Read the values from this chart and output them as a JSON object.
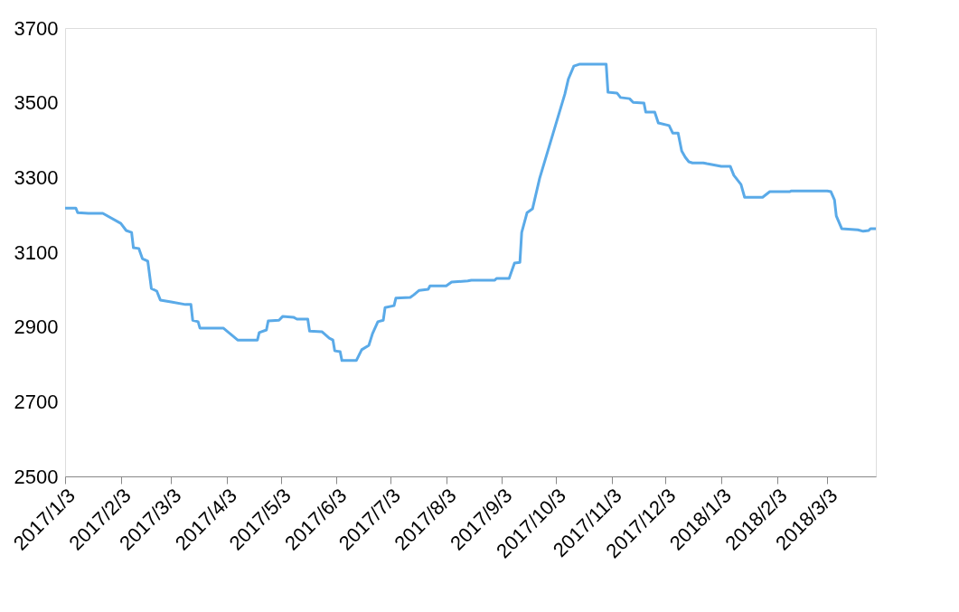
{
  "chart_data": {
    "type": "line",
    "grid": false,
    "marker": "none",
    "line_style": "solid",
    "ylim": [
      2500,
      3700
    ],
    "yticks": [
      2500,
      2700,
      2900,
      3100,
      3300,
      3500,
      3700
    ],
    "xlim": [
      "2017-01-03",
      "2018-03-30"
    ],
    "xticks": [
      {
        "value": "2017-01-03",
        "label": "2017/1/3"
      },
      {
        "value": "2017-02-03",
        "label": "2017/2/3"
      },
      {
        "value": "2017-03-03",
        "label": "2017/3/3"
      },
      {
        "value": "2017-04-03",
        "label": "2017/4/3"
      },
      {
        "value": "2017-05-03",
        "label": "2017/5/3"
      },
      {
        "value": "2017-06-03",
        "label": "2017/6/3"
      },
      {
        "value": "2017-07-03",
        "label": "2017/7/3"
      },
      {
        "value": "2017-08-03",
        "label": "2017/8/3"
      },
      {
        "value": "2017-09-03",
        "label": "2017/9/3"
      },
      {
        "value": "2017-10-03",
        "label": "2017/10/3"
      },
      {
        "value": "2017-11-03",
        "label": "2017/11/3"
      },
      {
        "value": "2017-12-03",
        "label": "2017/12/3"
      },
      {
        "value": "2018-01-03",
        "label": "2018/1/3"
      },
      {
        "value": "2018-02-03",
        "label": "2018/2/3"
      },
      {
        "value": "2018-03-03",
        "label": "2018/3/3"
      }
    ],
    "x": [
      "2017-01-03",
      "2017-01-09",
      "2017-01-10",
      "2017-01-16",
      "2017-01-24",
      "2017-02-03",
      "2017-02-06",
      "2017-02-09",
      "2017-02-10",
      "2017-02-13",
      "2017-02-15",
      "2017-02-18",
      "2017-02-20",
      "2017-02-23",
      "2017-02-25",
      "2017-03-03",
      "2017-03-11",
      "2017-03-14",
      "2017-03-15",
      "2017-03-18",
      "2017-03-19",
      "2017-04-01",
      "2017-04-06",
      "2017-04-09",
      "2017-04-20",
      "2017-04-21",
      "2017-04-25",
      "2017-04-26",
      "2017-05-02",
      "2017-05-04",
      "2017-05-10",
      "2017-05-12",
      "2017-05-18",
      "2017-05-19",
      "2017-05-26",
      "2017-05-30",
      "2017-06-01",
      "2017-06-02",
      "2017-06-05",
      "2017-06-06",
      "2017-06-14",
      "2017-06-17",
      "2017-06-21",
      "2017-06-23",
      "2017-06-26",
      "2017-06-29",
      "2017-06-30",
      "2017-07-05",
      "2017-07-06",
      "2017-07-14",
      "2017-07-16",
      "2017-07-19",
      "2017-07-24",
      "2017-07-25",
      "2017-08-03",
      "2017-08-06",
      "2017-08-15",
      "2017-08-17",
      "2017-08-30",
      "2017-08-31",
      "2017-09-07",
      "2017-09-10",
      "2017-09-13",
      "2017-09-14",
      "2017-09-17",
      "2017-09-20",
      "2017-09-24",
      "2017-10-08",
      "2017-10-10",
      "2017-10-13",
      "2017-10-16",
      "2017-10-31",
      "2017-11-01",
      "2017-11-06",
      "2017-11-08",
      "2017-11-13",
      "2017-11-15",
      "2017-11-21",
      "2017-11-22",
      "2017-11-27",
      "2017-11-29",
      "2017-12-05",
      "2017-12-07",
      "2017-12-10",
      "2017-12-12",
      "2017-12-14",
      "2017-12-16",
      "2017-12-18",
      "2017-12-24",
      "2017-12-26",
      "2018-01-03",
      "2018-01-08",
      "2018-01-10",
      "2018-01-14",
      "2018-01-16",
      "2018-01-26",
      "2018-01-30",
      "2018-02-10",
      "2018-02-11",
      "2018-03-03",
      "2018-03-05",
      "2018-03-07",
      "2018-03-08",
      "2018-03-11",
      "2018-03-20",
      "2018-03-23",
      "2018-03-26",
      "2018-03-27",
      "2018-03-30"
    ],
    "series": [
      {
        "color": "#5aaae8",
        "values": [
          3218,
          3218,
          3206,
          3204,
          3204,
          3177,
          3158,
          3153,
          3112,
          3110,
          3083,
          3076,
          3003,
          2996,
          2972,
          2967,
          2960,
          2960,
          2918,
          2914,
          2897,
          2897,
          2877,
          2865,
          2865,
          2885,
          2892,
          2916,
          2918,
          2928,
          2926,
          2921,
          2921,
          2889,
          2887,
          2870,
          2865,
          2836,
          2834,
          2810,
          2810,
          2839,
          2851,
          2882,
          2914,
          2918,
          2952,
          2957,
          2977,
          2979,
          2986,
          2998,
          3001,
          3010,
          3010,
          3020,
          3023,
          3025,
          3025,
          3030,
          3030,
          3071,
          3073,
          3153,
          3206,
          3216,
          3298,
          3523,
          3564,
          3598,
          3603,
          3603,
          3528,
          3526,
          3514,
          3511,
          3501,
          3499,
          3475,
          3475,
          3446,
          3439,
          3419,
          3419,
          3371,
          3354,
          3342,
          3339,
          3339,
          3337,
          3330,
          3330,
          3306,
          3281,
          3247,
          3247,
          3262,
          3262,
          3264,
          3264,
          3262,
          3240,
          3197,
          3163,
          3160,
          3156,
          3158,
          3163,
          3163
        ]
      }
    ]
  }
}
